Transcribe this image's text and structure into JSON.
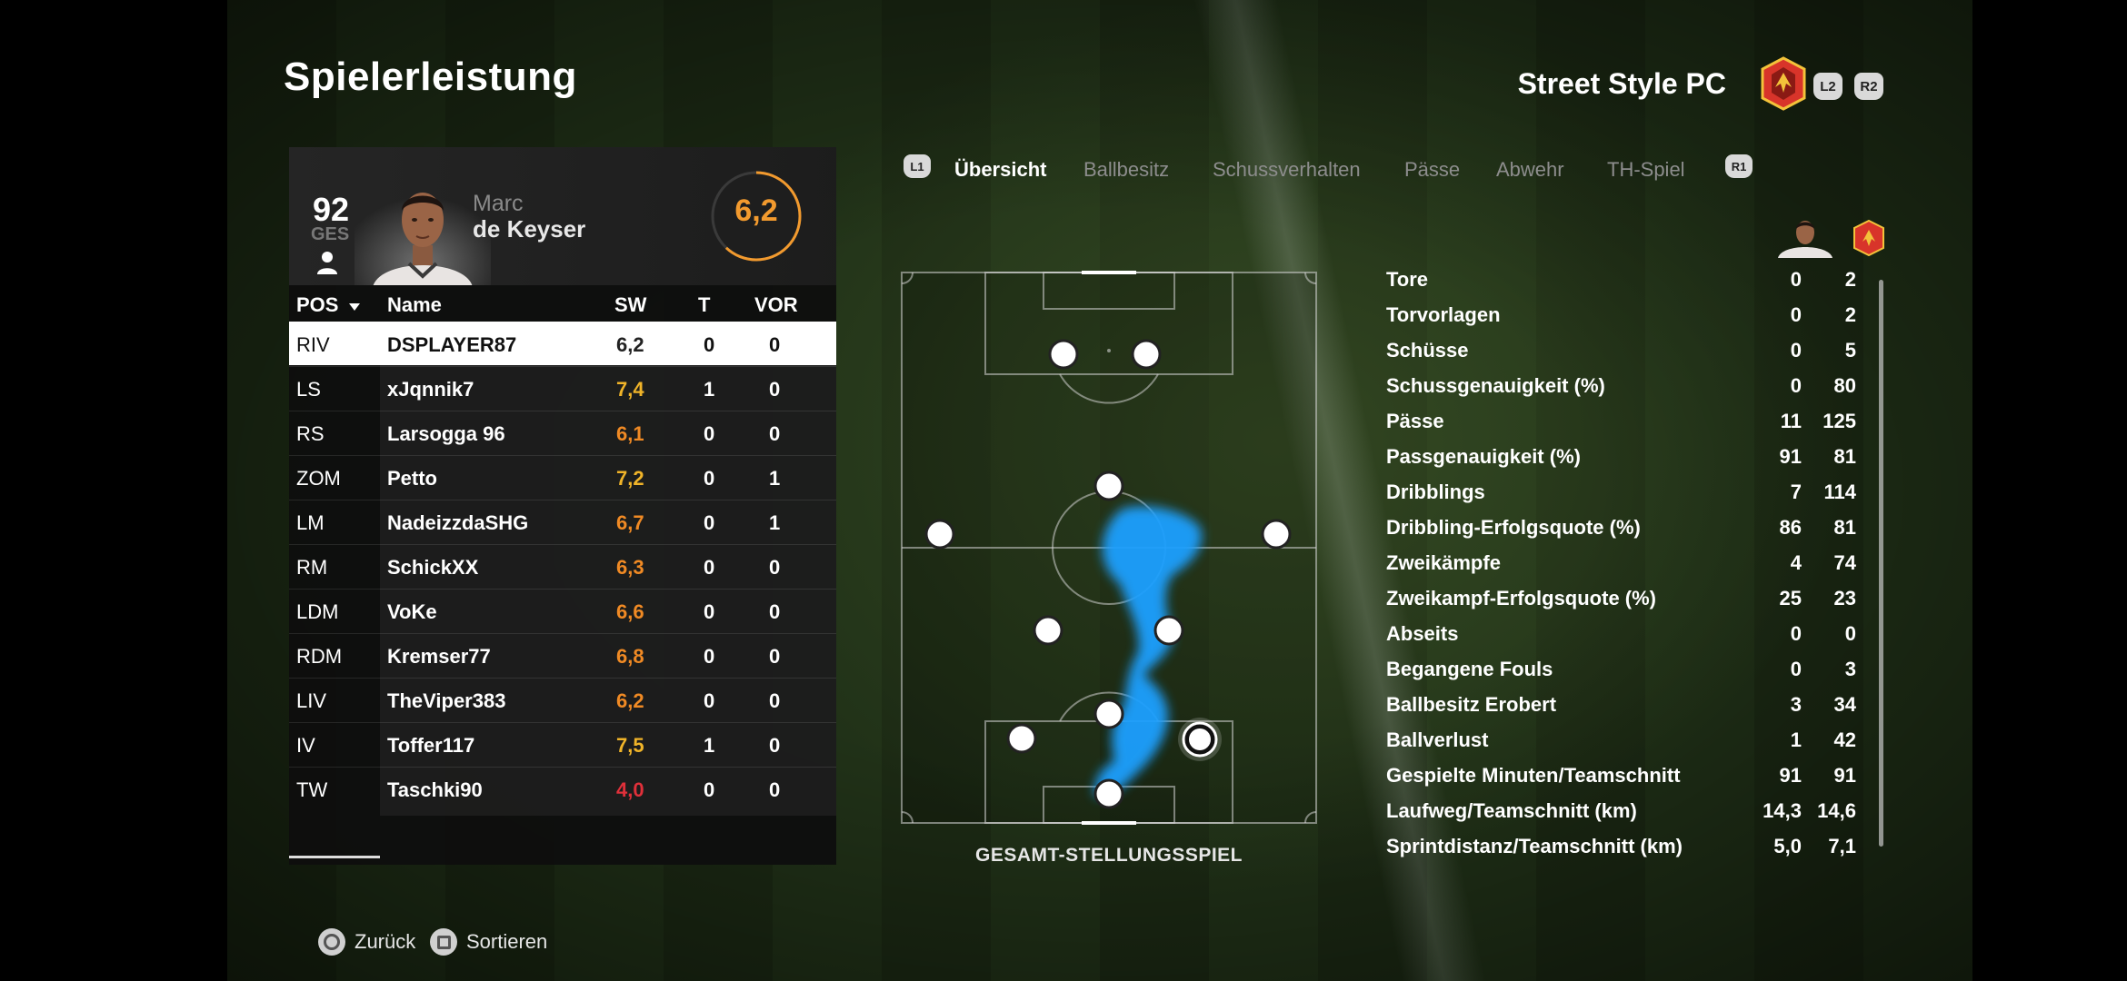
{
  "header": {
    "title": "Spielerleistung",
    "team_name": "Street Style PC",
    "left_trigger": "L2",
    "right_trigger": "R2"
  },
  "player": {
    "overall": "92",
    "overall_label": "GES",
    "first_name": "Marc",
    "last_name": "de Keyser",
    "rating": "6,2"
  },
  "table": {
    "columns": {
      "pos": "POS",
      "name": "Name",
      "sw": "SW",
      "t": "T",
      "vor": "VOR"
    },
    "rows": [
      {
        "pos": "RIV",
        "name": "DSPLAYER87",
        "sw": "6,2",
        "t": "0",
        "vor": "0",
        "color": "#222222"
      },
      {
        "pos": "LS",
        "name": "xJqnnik7",
        "sw": "7,4",
        "t": "1",
        "vor": "0",
        "color": "#f0b429"
      },
      {
        "pos": "RS",
        "name": "Larsogga 96",
        "sw": "6,1",
        "t": "0",
        "vor": "0",
        "color": "#f08a24"
      },
      {
        "pos": "ZOM",
        "name": "Petto",
        "sw": "7,2",
        "t": "0",
        "vor": "1",
        "color": "#f0b429"
      },
      {
        "pos": "LM",
        "name": "NadeizzdaSHG",
        "sw": "6,7",
        "t": "0",
        "vor": "1",
        "color": "#f08a24"
      },
      {
        "pos": "RM",
        "name": "SchickXX",
        "sw": "6,3",
        "t": "0",
        "vor": "0",
        "color": "#f08a24"
      },
      {
        "pos": "LDM",
        "name": "VoKe",
        "sw": "6,6",
        "t": "0",
        "vor": "0",
        "color": "#f08a24"
      },
      {
        "pos": "RDM",
        "name": "Kremser77",
        "sw": "6,8",
        "t": "0",
        "vor": "0",
        "color": "#f08a24"
      },
      {
        "pos": "LIV",
        "name": "TheViper383",
        "sw": "6,2",
        "t": "0",
        "vor": "0",
        "color": "#f08a24"
      },
      {
        "pos": "IV",
        "name": "Toffer117",
        "sw": "7,5",
        "t": "1",
        "vor": "0",
        "color": "#f0b429"
      },
      {
        "pos": "TW",
        "name": "Taschki90",
        "sw": "4,0",
        "t": "0",
        "vor": "0",
        "color": "#e0303a"
      }
    ]
  },
  "tabs": {
    "left_bumper": "L1",
    "right_bumper": "R1",
    "items": [
      "Übersicht",
      "Ballbesitz",
      "Schussverhalten",
      "Pässe",
      "Abwehr",
      "TH-Spiel"
    ],
    "active_index": 0
  },
  "pitch": {
    "caption": "GESAMT-STELLUNGSSPIEL"
  },
  "stats": [
    {
      "label": "Tore",
      "player": "0",
      "team": "2"
    },
    {
      "label": "Torvorlagen",
      "player": "0",
      "team": "2"
    },
    {
      "label": "Schüsse",
      "player": "0",
      "team": "5"
    },
    {
      "label": "Schussgenauigkeit (%)",
      "player": "0",
      "team": "80"
    },
    {
      "label": "Pässe",
      "player": "11",
      "team": "125"
    },
    {
      "label": "Passgenauigkeit (%)",
      "player": "91",
      "team": "81"
    },
    {
      "label": "Dribblings",
      "player": "7",
      "team": "114"
    },
    {
      "label": "Dribbling-Erfolgsquote (%)",
      "player": "86",
      "team": "81"
    },
    {
      "label": "Zweikämpfe",
      "player": "4",
      "team": "74"
    },
    {
      "label": "Zweikampf-Erfolgsquote (%)",
      "player": "25",
      "team": "23"
    },
    {
      "label": "Abseits",
      "player": "0",
      "team": "0"
    },
    {
      "label": "Begangene Fouls",
      "player": "0",
      "team": "3"
    },
    {
      "label": "Ballbesitz Erobert",
      "player": "3",
      "team": "34"
    },
    {
      "label": "Ballverlust",
      "player": "1",
      "team": "42"
    },
    {
      "label": "Gespielte Minuten/Teamschnitt",
      "player": "91",
      "team": "91"
    },
    {
      "label": "Laufweg/Teamschnitt (km)",
      "player": "14,3",
      "team": "14,6"
    },
    {
      "label": "Sprintdistanz/Teamschnitt (km)",
      "player": "5,0",
      "team": "7,1"
    }
  ],
  "footer": {
    "back_label": "Zurück",
    "sort_label": "Sortieren"
  },
  "colors": {
    "rating_orange": "#f29a2e",
    "heatmap_blue": "#1aa0ff",
    "badge_red": "#d8342a"
  }
}
